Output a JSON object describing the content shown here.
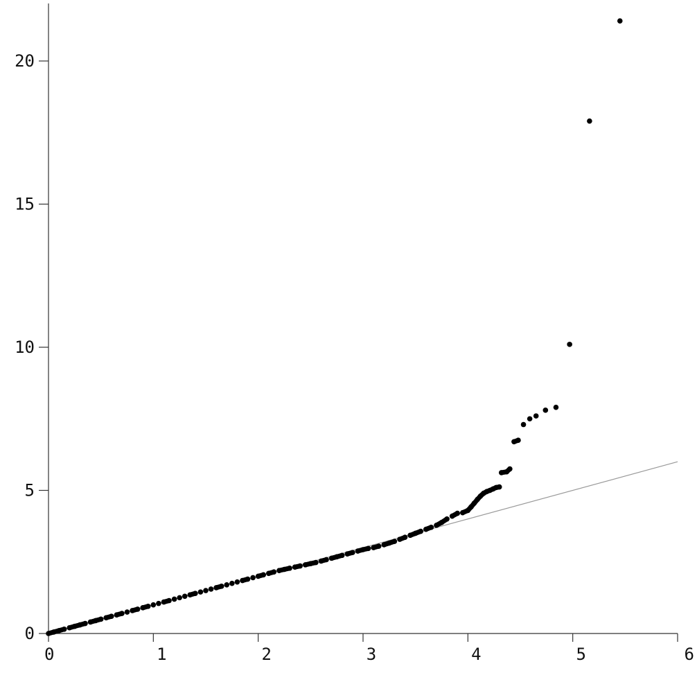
{
  "chart_data": {
    "type": "scatter",
    "title": "",
    "xlabel": "",
    "ylabel": "",
    "xlim": [
      0,
      6
    ],
    "ylim": [
      0,
      22
    ],
    "grid": false,
    "legend": "none",
    "x_ticks": [
      0,
      1,
      2,
      3,
      4,
      5,
      6
    ],
    "x_tick_labels": [
      "0",
      "1",
      "2",
      "3",
      "4",
      "5",
      "6"
    ],
    "y_ticks": [
      0,
      5,
      10,
      15,
      20
    ],
    "y_tick_labels": [
      "0",
      "5",
      "10",
      "15",
      "20"
    ],
    "reference_line": {
      "x": [
        0,
        6
      ],
      "y": [
        0,
        6
      ],
      "color": "#999999"
    },
    "point_color": "#000000",
    "series": [
      {
        "points": [
          [
            0.0,
            0.0
          ],
          [
            0.05,
            0.05
          ],
          [
            0.1,
            0.1
          ],
          [
            0.15,
            0.15
          ],
          [
            0.2,
            0.2
          ],
          [
            0.25,
            0.25
          ],
          [
            0.3,
            0.3
          ],
          [
            0.35,
            0.35
          ],
          [
            0.4,
            0.4
          ],
          [
            0.45,
            0.45
          ],
          [
            0.5,
            0.5
          ],
          [
            0.55,
            0.55
          ],
          [
            0.6,
            0.6
          ],
          [
            0.65,
            0.65
          ],
          [
            0.7,
            0.7
          ],
          [
            0.75,
            0.75
          ],
          [
            0.8,
            0.8
          ],
          [
            0.85,
            0.85
          ],
          [
            0.9,
            0.9
          ],
          [
            0.95,
            0.95
          ],
          [
            1.0,
            1.0
          ],
          [
            1.05,
            1.05
          ],
          [
            1.1,
            1.1
          ],
          [
            1.15,
            1.15
          ],
          [
            1.2,
            1.2
          ],
          [
            1.25,
            1.25
          ],
          [
            1.3,
            1.3
          ],
          [
            1.35,
            1.35
          ],
          [
            1.4,
            1.4
          ],
          [
            1.45,
            1.45
          ],
          [
            1.5,
            1.5
          ],
          [
            1.55,
            1.55
          ],
          [
            1.6,
            1.6
          ],
          [
            1.65,
            1.65
          ],
          [
            1.7,
            1.7
          ],
          [
            1.75,
            1.75
          ],
          [
            1.8,
            1.8
          ],
          [
            1.85,
            1.85
          ],
          [
            1.9,
            1.9
          ],
          [
            1.95,
            1.95
          ],
          [
            2.0,
            2.0
          ],
          [
            2.05,
            2.05
          ],
          [
            2.1,
            2.1
          ],
          [
            2.15,
            2.15
          ],
          [
            2.2,
            2.2
          ],
          [
            2.25,
            2.24
          ],
          [
            2.3,
            2.28
          ],
          [
            2.35,
            2.32
          ],
          [
            2.4,
            2.36
          ],
          [
            2.45,
            2.4
          ],
          [
            2.5,
            2.44
          ],
          [
            2.55,
            2.48
          ],
          [
            2.6,
            2.53
          ],
          [
            2.65,
            2.58
          ],
          [
            2.7,
            2.63
          ],
          [
            2.75,
            2.68
          ],
          [
            2.8,
            2.73
          ],
          [
            2.85,
            2.78
          ],
          [
            2.9,
            2.83
          ],
          [
            2.95,
            2.88
          ],
          [
            3.0,
            2.93
          ],
          [
            3.05,
            2.97
          ],
          [
            3.1,
            3.0
          ],
          [
            3.15,
            3.05
          ],
          [
            3.2,
            3.1
          ],
          [
            3.25,
            3.16
          ],
          [
            3.3,
            3.22
          ],
          [
            3.35,
            3.29
          ],
          [
            3.4,
            3.36
          ],
          [
            3.45,
            3.43
          ],
          [
            3.5,
            3.5
          ],
          [
            3.55,
            3.57
          ],
          [
            3.6,
            3.64
          ],
          [
            3.65,
            3.71
          ],
          [
            3.7,
            3.78
          ],
          [
            3.75,
            3.88
          ],
          [
            3.8,
            4.0
          ],
          [
            3.85,
            4.1
          ],
          [
            3.9,
            4.2
          ],
          [
            3.95,
            4.22
          ],
          [
            4.0,
            4.3
          ],
          [
            4.03,
            4.42
          ],
          [
            4.06,
            4.55
          ],
          [
            4.09,
            4.68
          ],
          [
            4.12,
            4.8
          ],
          [
            4.15,
            4.9
          ],
          [
            4.18,
            4.96
          ],
          [
            4.21,
            5.0
          ],
          [
            4.24,
            5.05
          ],
          [
            4.27,
            5.1
          ],
          [
            4.3,
            5.12
          ],
          [
            4.32,
            5.62
          ],
          [
            4.37,
            5.65
          ],
          [
            4.4,
            5.75
          ],
          [
            4.44,
            6.7
          ],
          [
            4.48,
            6.75
          ],
          [
            4.53,
            7.3
          ],
          [
            4.59,
            7.5
          ],
          [
            4.65,
            7.6
          ],
          [
            4.74,
            7.8
          ],
          [
            4.84,
            7.9
          ],
          [
            4.97,
            10.1
          ],
          [
            5.16,
            17.9
          ],
          [
            5.45,
            21.4
          ]
        ]
      }
    ]
  }
}
